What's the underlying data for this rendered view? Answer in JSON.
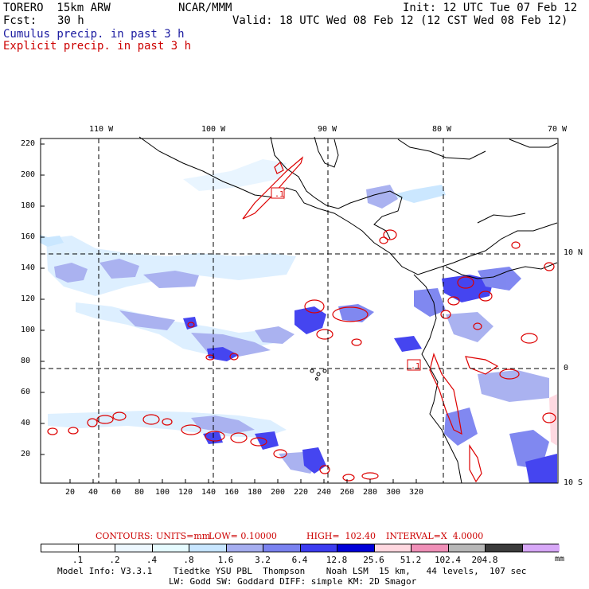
{
  "header": {
    "model": "TORERO  15km ARW",
    "org": "NCAR/MMM",
    "init": "Init: 12 UTC Tue 07 Feb 12",
    "fcst_label": "Fcst:",
    "fcst_value": "30 h",
    "valid": "Valid: 18 UTC Wed 08 Feb 12 (12 CST Wed 08 Feb 12)",
    "legend_cumulus": "Cumulus precip. in past 3 h",
    "legend_explicit": "Explicit precip. in past 3 h"
  },
  "lon_labels": [
    "110 W",
    "100 W",
    "90 W",
    "80 W",
    "70 W"
  ],
  "lat_labels": [
    "10 N",
    "0",
    "10 S"
  ],
  "y_ticks": [
    "220",
    "200",
    "180",
    "160",
    "140",
    "120",
    "100",
    "80",
    "60",
    "40",
    "20"
  ],
  "x_ticks": [
    "20",
    "40",
    "60",
    "80",
    "100",
    "120",
    "140",
    "160",
    "180",
    "200",
    "220",
    "240",
    "260",
    "280",
    "300",
    "320"
  ],
  "contour_labels": [
    ".1",
    ".1"
  ],
  "contours_info": {
    "contours": "CONTOURS:",
    "units": "UNITS=mm",
    "low": "LOW= 0.10000",
    "high": "HIGH=  102.40",
    "interval": "INTERVAL=X  4.0000"
  },
  "colorbar": {
    "labels": [
      ".1",
      ".2",
      ".4",
      ".8",
      "1.6",
      "3.2",
      "6.4",
      "12.8",
      "25.6",
      "51.2",
      "102.4",
      "204.8"
    ],
    "unit": "mm",
    "colors": [
      "#ffffff",
      "#ffffff",
      "#eef8ff",
      "#e6fbff",
      "#c8e6ff",
      "#a6aef0",
      "#7a82f0",
      "#3c3cf0",
      "#0000d8",
      "#ffd8e0",
      "#f090b8",
      "#b8b8b8",
      "#3c3c3c",
      "#d8a8f8"
    ]
  },
  "footer": {
    "line1": "Model Info: V3.3.1    Tiedtke YSU PBL  Thompson    Noah LSM  15 km,   44 levels,  107 sec",
    "line2": "LW: Godd SW: Goddard DIFF: simple KM: 2D Smagor"
  }
}
